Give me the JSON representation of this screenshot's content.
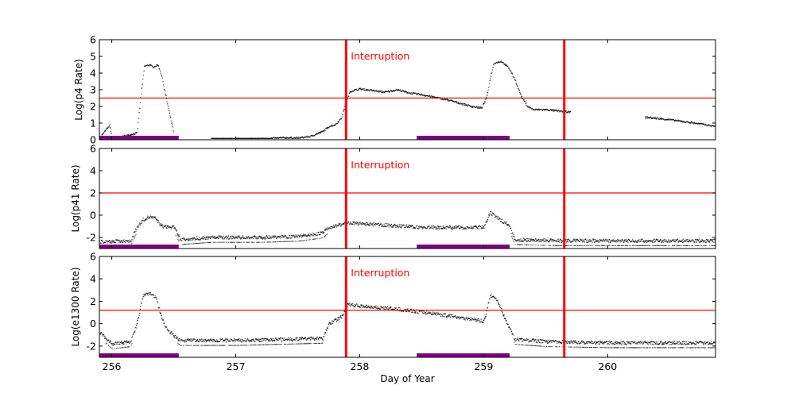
{
  "chart_data": [
    {
      "type": "scatter",
      "ylabel": "Log(p4 Rate)",
      "xlim": [
        255.9,
        260.87
      ],
      "ylim": [
        0,
        6
      ],
      "yticks": [
        "0",
        "1",
        "2",
        "3",
        "4",
        "5",
        "6"
      ],
      "threshold": 2.5,
      "annotation": "Interruption",
      "points": [
        [
          255.9,
          0.1
        ],
        [
          255.95,
          0.6
        ],
        [
          255.98,
          0.85
        ],
        [
          256.0,
          0.05
        ],
        [
          256.2,
          0.4
        ],
        [
          256.23,
          2.5
        ],
        [
          256.26,
          4.4
        ],
        [
          256.3,
          4.5
        ],
        [
          256.33,
          4.35
        ],
        [
          256.37,
          4.5
        ],
        [
          256.4,
          3.8
        ],
        [
          256.45,
          2.0
        ],
        [
          256.5,
          0.3
        ],
        [
          256.8,
          0.05
        ],
        [
          257.0,
          0.02
        ],
        [
          257.2,
          0.05
        ],
        [
          257.4,
          0.12
        ],
        [
          257.5,
          0.1
        ],
        [
          257.6,
          0.2
        ],
        [
          257.7,
          0.5
        ],
        [
          257.75,
          0.8
        ],
        [
          257.8,
          0.9
        ],
        [
          257.85,
          1.3
        ],
        [
          257.88,
          2.1
        ],
        [
          257.92,
          2.9
        ],
        [
          258.0,
          3.05
        ],
        [
          258.1,
          2.95
        ],
        [
          258.2,
          2.85
        ],
        [
          258.3,
          3.0
        ],
        [
          258.4,
          2.8
        ],
        [
          258.5,
          2.7
        ],
        [
          258.6,
          2.55
        ],
        [
          258.7,
          2.4
        ],
        [
          258.8,
          2.2
        ],
        [
          258.9,
          2.0
        ],
        [
          258.98,
          1.9
        ],
        [
          259.02,
          2.5
        ],
        [
          259.05,
          3.7
        ],
        [
          259.08,
          4.6
        ],
        [
          259.14,
          4.7
        ],
        [
          259.2,
          4.3
        ],
        [
          259.25,
          3.6
        ],
        [
          259.3,
          2.6
        ],
        [
          259.35,
          2.0
        ],
        [
          259.4,
          1.8
        ],
        [
          259.5,
          1.8
        ],
        [
          259.7,
          1.65
        ],
        [
          260.0,
          1.5
        ],
        [
          260.3,
          1.35
        ],
        [
          260.5,
          1.2
        ],
        [
          260.7,
          1.0
        ],
        [
          260.87,
          0.8
        ]
      ]
    },
    {
      "type": "scatter",
      "ylabel": "Log(p41 Rate)",
      "xlim": [
        255.9,
        260.87
      ],
      "ylim": [
        -3,
        6
      ],
      "yticks": [
        "-2",
        "0",
        "2",
        "4",
        "6"
      ],
      "threshold": 2,
      "annotation": "Interruption",
      "points": [
        [
          255.9,
          -2.4
        ],
        [
          256.15,
          -2.3
        ],
        [
          256.2,
          -1.1
        ],
        [
          256.25,
          -0.4
        ],
        [
          256.3,
          -0.15
        ],
        [
          256.35,
          -0.3
        ],
        [
          256.4,
          -1.0
        ],
        [
          256.5,
          -1.1
        ],
        [
          256.55,
          -2.2
        ],
        [
          256.8,
          -2.0
        ],
        [
          257.2,
          -2.0
        ],
        [
          257.5,
          -1.9
        ],
        [
          257.7,
          -1.6
        ],
        [
          257.75,
          -1.1
        ],
        [
          257.9,
          -0.7
        ],
        [
          258.2,
          -0.9
        ],
        [
          258.5,
          -1.1
        ],
        [
          259.0,
          -1.1
        ],
        [
          259.05,
          0.2
        ],
        [
          259.1,
          -0.2
        ],
        [
          259.2,
          -0.9
        ],
        [
          259.25,
          -2.2
        ],
        [
          259.6,
          -2.3
        ],
        [
          260.2,
          -2.3
        ],
        [
          260.87,
          -2.3
        ]
      ]
    },
    {
      "type": "scatter",
      "xlabel": "Day of Year",
      "ylabel": "Log(e1300 Rate)",
      "xlim": [
        255.9,
        260.87
      ],
      "ylim": [
        -3,
        6
      ],
      "yticks": [
        "-2",
        "0",
        "2",
        "4",
        "6"
      ],
      "xticks": [
        "256",
        "257",
        "258",
        "259",
        "260"
      ],
      "threshold": 1.2,
      "annotation": "Interruption",
      "points": [
        [
          255.9,
          -0.8
        ],
        [
          256.0,
          -1.8
        ],
        [
          256.15,
          -1.6
        ],
        [
          256.2,
          0.0
        ],
        [
          256.25,
          2.5
        ],
        [
          256.3,
          2.7
        ],
        [
          256.35,
          2.4
        ],
        [
          256.4,
          0.5
        ],
        [
          256.45,
          -0.6
        ],
        [
          256.55,
          -1.5
        ],
        [
          257.0,
          -1.5
        ],
        [
          257.7,
          -1.3
        ],
        [
          257.75,
          0.0
        ],
        [
          257.85,
          0.6
        ],
        [
          257.9,
          1.7
        ],
        [
          258.0,
          1.6
        ],
        [
          258.3,
          1.3
        ],
        [
          258.6,
          0.9
        ],
        [
          258.9,
          0.4
        ],
        [
          259.0,
          0.2
        ],
        [
          259.05,
          2.5
        ],
        [
          259.1,
          2.2
        ],
        [
          259.2,
          -0.3
        ],
        [
          259.25,
          -1.4
        ],
        [
          259.5,
          -1.6
        ],
        [
          260.0,
          -1.7
        ],
        [
          260.87,
          -1.7
        ]
      ]
    }
  ],
  "interruptions": [
    257.89,
    259.65
  ],
  "shaded_intervals": [
    [
      255.9,
      256.54
    ],
    [
      258.46,
      259.21
    ]
  ],
  "colors": {
    "points": "#000000",
    "lines": "#ff0000",
    "bars": "#800080"
  }
}
